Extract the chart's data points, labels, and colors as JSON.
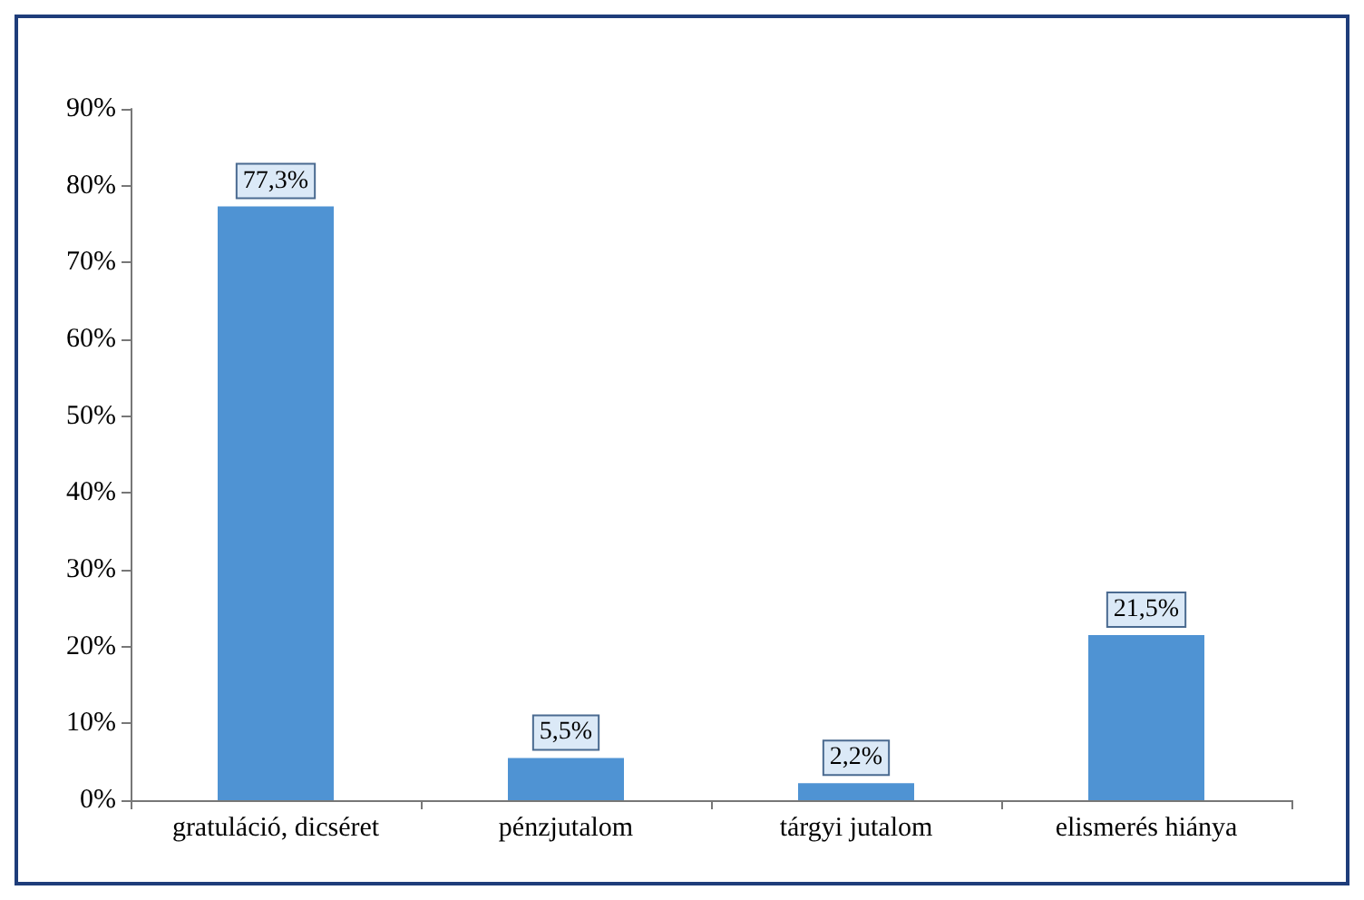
{
  "chart_data": {
    "type": "bar",
    "categories": [
      "gratuláció, dicséret",
      "pénzjutalom",
      "tárgyi jutalom",
      "elismerés hiánya"
    ],
    "values": [
      77.3,
      5.5,
      2.2,
      21.5
    ],
    "value_labels": [
      "77,3%",
      "5,5%",
      "2,2%",
      "21,5%"
    ],
    "color": "#4f93d3",
    "ylim": [
      0,
      90
    ],
    "yticks": [
      {
        "value": 0,
        "label": "0%"
      },
      {
        "value": 10,
        "label": "10%"
      },
      {
        "value": 20,
        "label": "20%"
      },
      {
        "value": 30,
        "label": "30%"
      },
      {
        "value": 40,
        "label": "40%"
      },
      {
        "value": 50,
        "label": "50%"
      },
      {
        "value": 60,
        "label": "60%"
      },
      {
        "value": 70,
        "label": "70%"
      },
      {
        "value": 80,
        "label": "80%"
      },
      {
        "value": 90,
        "label": "90%"
      }
    ],
    "grid": false
  }
}
